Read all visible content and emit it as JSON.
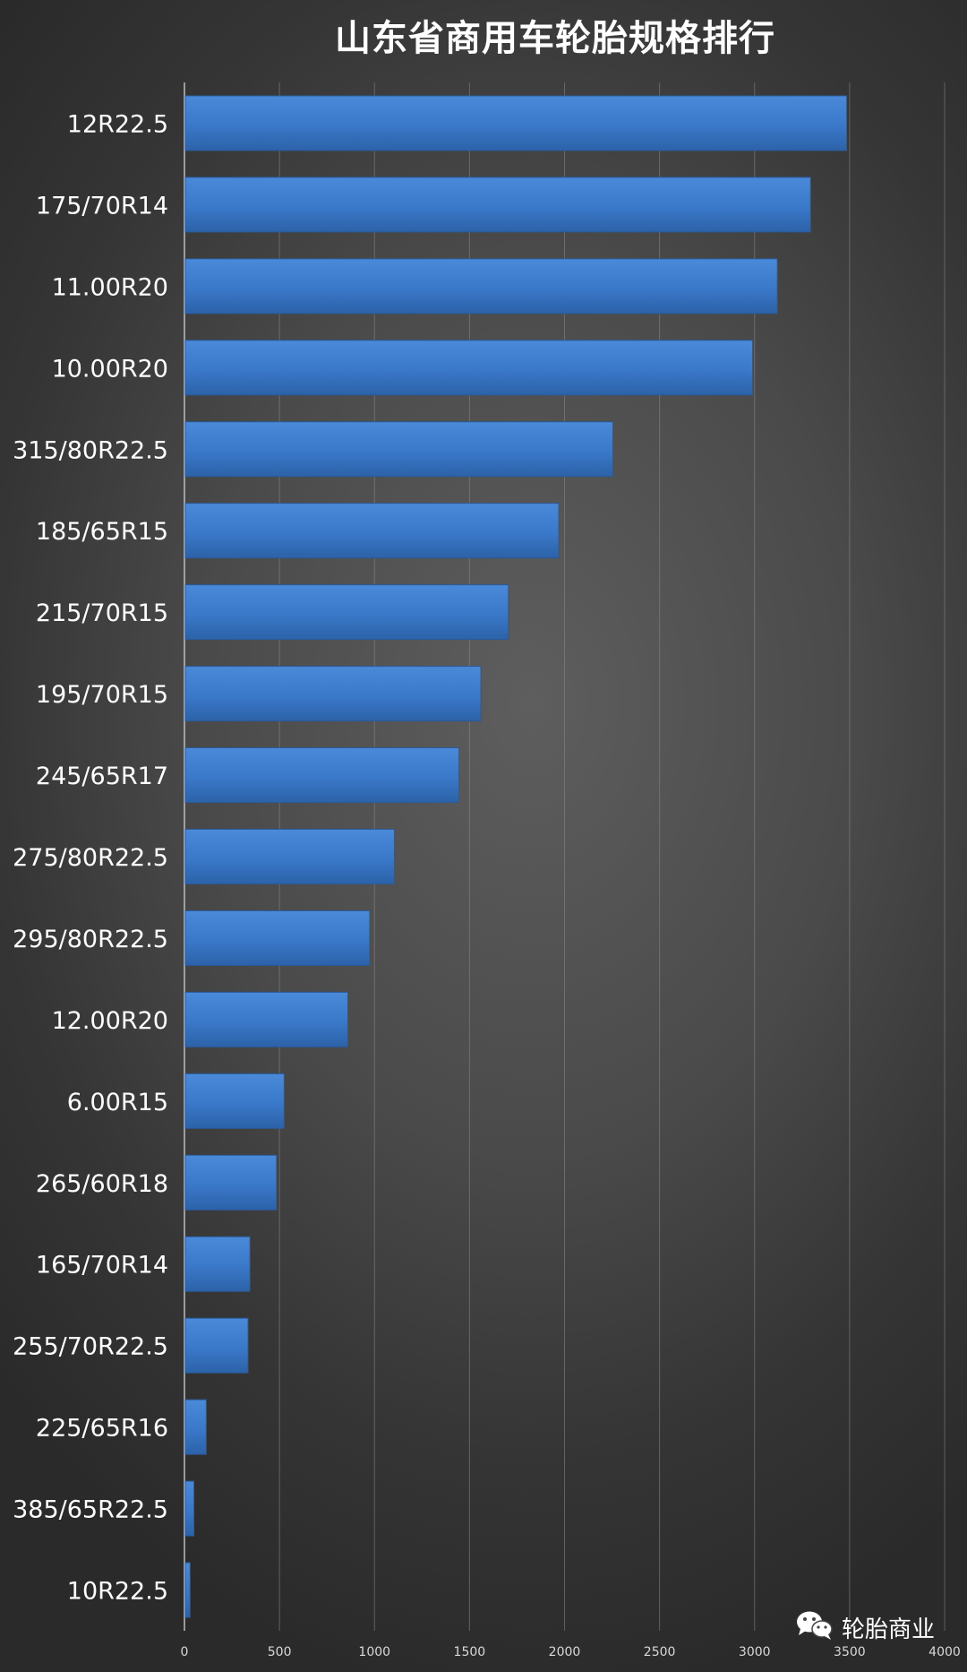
{
  "chart_data": {
    "type": "bar",
    "orientation": "horizontal",
    "title": "山东省商用车轮胎规格排行",
    "categories": [
      "12R22.5",
      "175/70R14",
      "11.00R20",
      "10.00R20",
      "315/80R22.5",
      "185/65R15",
      "215/70R15",
      "195/70R15",
      "245/65R17",
      "275/80R22.5",
      "295/80R22.5",
      "12.00R20",
      "6.00R15",
      "265/60R18",
      "165/70R14",
      "255/70R22.5",
      "225/65R16",
      "385/65R22.5",
      "10R22.5"
    ],
    "values": [
      3480,
      3290,
      3115,
      2985,
      2250,
      1965,
      1700,
      1555,
      1440,
      1100,
      970,
      855,
      520,
      480,
      340,
      330,
      110,
      45,
      25
    ],
    "xlim": [
      0,
      4000
    ],
    "xticks": [
      0,
      500,
      1000,
      1500,
      2000,
      2500,
      3000,
      3500,
      4000
    ],
    "grid": true,
    "legend": "none",
    "bar_color": "#3a78c9"
  },
  "watermark": {
    "text": "轮胎商业",
    "icon": "wechat-icon"
  }
}
